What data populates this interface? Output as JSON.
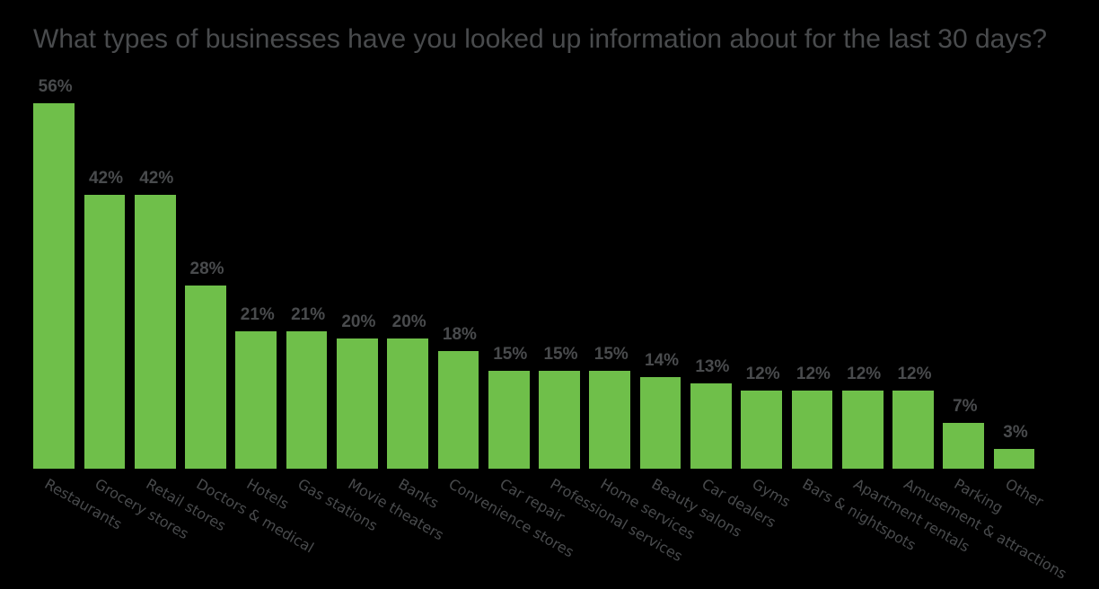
{
  "chart_data": {
    "type": "bar",
    "title": "What types of businesses have you looked up information about for the last 30 days?",
    "categories": [
      "Restaurants",
      "Grocery stores",
      "Retail stores",
      "Doctors & medical",
      "Hotels",
      "Gas stations",
      "Movie theaters",
      "Banks",
      "Convenience stores",
      "Car repair",
      "Professional services",
      "Home services",
      "Beauty salons",
      "Car dealers",
      "Gyms",
      "Bars & nightspots",
      "Apartment rentals",
      "Amusement & attractions",
      "Parking",
      "Other"
    ],
    "values": [
      56,
      42,
      42,
      28,
      21,
      21,
      20,
      20,
      18,
      15,
      15,
      15,
      14,
      13,
      12,
      12,
      12,
      12,
      7,
      3
    ],
    "value_suffix": "%",
    "xlabel": "",
    "ylabel": "",
    "ylim": [
      0,
      56
    ],
    "grid": false,
    "axes_visible": false,
    "legend": false,
    "category_label_rotation_deg": 30,
    "colors": {
      "background": "#000000",
      "bar": "#6fbf4a",
      "title": "#494b4d",
      "labels": "#494b4d"
    }
  }
}
